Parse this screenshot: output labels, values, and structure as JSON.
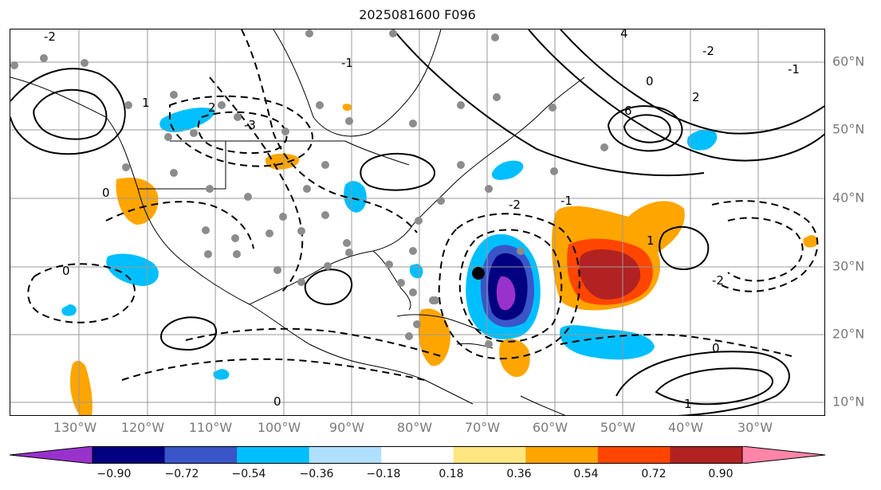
{
  "title": "2025081600 F096",
  "longitude_labels": [
    "130°W",
    "120°W",
    "110°W",
    "100°W",
    "90°W",
    "80°W",
    "70°W",
    "60°W",
    "50°W",
    "40°W",
    "30°W"
  ],
  "latitude_labels": [
    "60°N",
    "50°N",
    "40°N",
    "30°N",
    "20°N",
    "10°N"
  ],
  "colorbar": {
    "tick_labels": [
      "−0.90",
      "−0.72",
      "−0.54",
      "−0.36",
      "−0.18",
      "0.18",
      "0.36",
      "0.54",
      "0.72",
      "0.90"
    ],
    "colors": [
      "#9932cc",
      "#000080",
      "#3a55c8",
      "#00bfff",
      "#b0e0ff",
      "#ffffff",
      "#ffe680",
      "#ffa500",
      "#ff4500",
      "#b22222",
      "#ff85a8"
    ],
    "extend": "both"
  },
  "contour_labels": [
    "-2",
    "-1",
    "0",
    "1",
    "2",
    "-3",
    "4",
    "6",
    "-2",
    "-1",
    "0",
    "2",
    "1",
    "0",
    "-1",
    "-2",
    "0",
    "-2",
    "1",
    "0"
  ],
  "colors": {
    "positive_contour": "#000000",
    "negative_contour": "#000000",
    "grid": "#999999",
    "station_dot": "#8c8c8c",
    "storm_center": "#000000"
  }
}
